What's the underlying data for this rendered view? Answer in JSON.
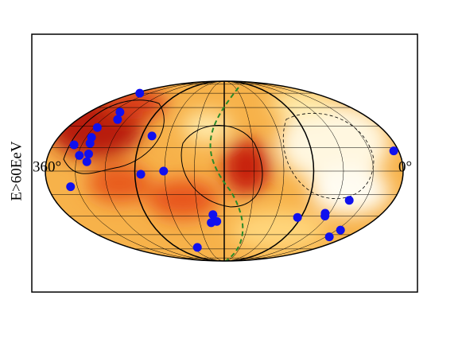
{
  "chart_data": {
    "type": "scatter",
    "ylabel": "E>60EeV",
    "xlim": [
      360,
      0
    ],
    "ylim": [
      -90,
      90
    ],
    "xticks": [
      {
        "value": 360,
        "label": "360°"
      },
      {
        "value": 0,
        "label": "0°"
      }
    ],
    "color": "#1010ee",
    "x": [
      350,
      319,
      311,
      326,
      324,
      322,
      338,
      319,
      328,
      319,
      337,
      259,
      264,
      241,
      193,
      189,
      196,
      231,
      94,
      65,
      63,
      47,
      25,
      25,
      5
    ],
    "values": [
      60,
      41,
      35,
      29,
      22,
      18,
      17,
      11,
      10,
      6,
      -10,
      23,
      -2,
      0,
      -29,
      -34,
      -35,
      -58,
      -31,
      -28,
      -30,
      -19,
      -41,
      -47,
      13
    ]
  }
}
